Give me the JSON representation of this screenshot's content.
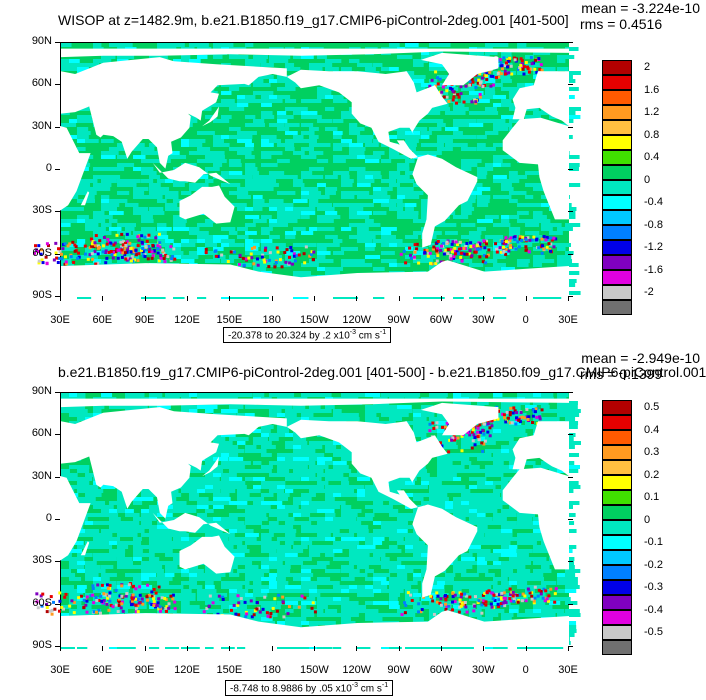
{
  "panels": [
    {
      "title": "WISOP at z=1482.9m, b.e21.B1850.f19_g17.CMIP6-piControl-2deg.001 [401-500]",
      "mean_label": "mean = -3.224e-10",
      "rms_label": "rms = 0.4516",
      "range_text": "-20.378 to 20.324 by .2 x10",
      "range_exp": "-3",
      "range_unit": " cm s",
      "range_unit_exp": "-1",
      "colorbar_labels": [
        "2",
        "1.6",
        "1.2",
        "0.8",
        "0.4",
        "0",
        "-0.4",
        "-0.8",
        "-1.2",
        "-1.6",
        "-2"
      ],
      "colors": [
        "#b30000",
        "#e60000",
        "#ff5a00",
        "#ff9a20",
        "#ffc040",
        "#ffff00",
        "#40e000",
        "#00d060",
        "#00e8c0",
        "#00ffff",
        "#00c8ff",
        "#0080ff",
        "#0000e8",
        "#8000c0",
        "#e000e0",
        "#c8c8c8",
        "#707070"
      ]
    },
    {
      "title": "b.e21.B1850.f19_g17.CMIP6-piControl-2deg.001 [401-500] - b.e21.B1850.f09_g17.CMIP6-piControl.001",
      "mean_label": "mean = -2.949e-10",
      "rms_label": "rms = 0.1399",
      "range_text": "-8.748 to 8.9886 by .05 x10",
      "range_exp": "-3",
      "range_unit": " cm s",
      "range_unit_exp": "-1",
      "colorbar_labels": [
        "0.5",
        "0.4",
        "0.3",
        "0.2",
        "0.1",
        "0",
        "-0.1",
        "-0.2",
        "-0.3",
        "-0.4",
        "-0.5"
      ],
      "colors": [
        "#b30000",
        "#e60000",
        "#ff5a00",
        "#ff9a20",
        "#ffc040",
        "#ffff00",
        "#40e000",
        "#00d060",
        "#00e8c0",
        "#00ffff",
        "#00c8ff",
        "#0080ff",
        "#0000e8",
        "#8000c0",
        "#e000e0",
        "#c8c8c8",
        "#707070"
      ]
    }
  ],
  "axes": {
    "lat_labels": [
      "90N",
      "60N",
      "30N",
      "0",
      "30S",
      "60S",
      "90S"
    ],
    "lon_labels": [
      "30E",
      "60E",
      "90E",
      "120E",
      "150E",
      "180",
      "150W",
      "120W",
      "90W",
      "60W",
      "30W",
      "0",
      "30E"
    ]
  }
}
